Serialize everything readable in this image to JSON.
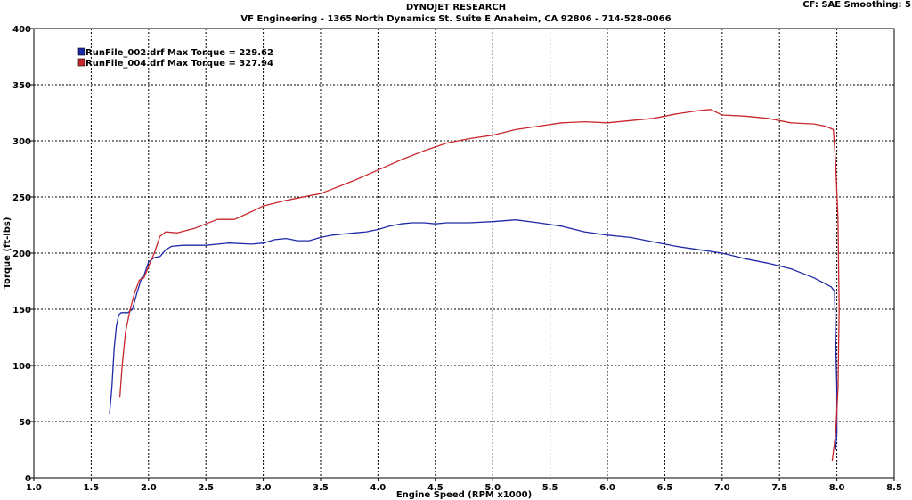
{
  "header": {
    "title": "DYNOJET RESEARCH",
    "subtitle": "VF Engineering - 1365 North Dynamics St. Suite E Anaheim, CA 92806 - 714-528-0066",
    "corner": "CF: SAE  Smoothing: 5"
  },
  "chart_data": {
    "type": "line",
    "xlabel": "Engine Speed (RPM x1000)",
    "ylabel": "Torque (ft-lbs)",
    "xlim": [
      1.0,
      8.5
    ],
    "ylim": [
      0,
      400
    ],
    "xticks": [
      "1.0",
      "1.5",
      "2.0",
      "2.5",
      "3.0",
      "3.5",
      "4.0",
      "4.5",
      "5.0",
      "5.5",
      "6.0",
      "6.5",
      "7.0",
      "7.5",
      "8.0",
      "8.5"
    ],
    "yticks": [
      "0",
      "50",
      "100",
      "150",
      "200",
      "250",
      "300",
      "350",
      "400"
    ],
    "grid": true,
    "legend_position": "top-left",
    "series": [
      {
        "name": "RunFile_002.drf Max Torque = 229.62",
        "color": "#1f2aa8",
        "points": [
          [
            1.66,
            57
          ],
          [
            1.68,
            80
          ],
          [
            1.7,
            115
          ],
          [
            1.72,
            135
          ],
          [
            1.74,
            145
          ],
          [
            1.76,
            147
          ],
          [
            1.82,
            147
          ],
          [
            1.86,
            150
          ],
          [
            1.9,
            165
          ],
          [
            1.94,
            178
          ],
          [
            1.96,
            180
          ],
          [
            2.0,
            192
          ],
          [
            2.05,
            196
          ],
          [
            2.1,
            197
          ],
          [
            2.15,
            203
          ],
          [
            2.2,
            206
          ],
          [
            2.3,
            207
          ],
          [
            2.5,
            207
          ],
          [
            2.7,
            209
          ],
          [
            2.9,
            208
          ],
          [
            3.0,
            209
          ],
          [
            3.1,
            212
          ],
          [
            3.2,
            213
          ],
          [
            3.3,
            211
          ],
          [
            3.4,
            211
          ],
          [
            3.5,
            214
          ],
          [
            3.6,
            216
          ],
          [
            3.8,
            218
          ],
          [
            3.9,
            219
          ],
          [
            4.0,
            221
          ],
          [
            4.1,
            224
          ],
          [
            4.2,
            226
          ],
          [
            4.3,
            227
          ],
          [
            4.4,
            227
          ],
          [
            4.5,
            226
          ],
          [
            4.6,
            227
          ],
          [
            4.8,
            227
          ],
          [
            5.0,
            228
          ],
          [
            5.2,
            229.6
          ],
          [
            5.4,
            227
          ],
          [
            5.6,
            224
          ],
          [
            5.8,
            219
          ],
          [
            6.0,
            216
          ],
          [
            6.2,
            214
          ],
          [
            6.4,
            210
          ],
          [
            6.6,
            206
          ],
          [
            6.8,
            203
          ],
          [
            7.0,
            200
          ],
          [
            7.2,
            195
          ],
          [
            7.4,
            191
          ],
          [
            7.6,
            186
          ],
          [
            7.8,
            178
          ],
          [
            7.95,
            170
          ],
          [
            7.98,
            166
          ],
          [
            7.99,
            120
          ],
          [
            8.0,
            80
          ],
          [
            8.0,
            40
          ],
          [
            7.99,
            25
          ]
        ]
      },
      {
        "name": "RunFile_004.drf Max Torque = 327.94",
        "color": "#c8282d",
        "points": [
          [
            1.75,
            72
          ],
          [
            1.77,
            100
          ],
          [
            1.8,
            130
          ],
          [
            1.84,
            150
          ],
          [
            1.88,
            165
          ],
          [
            1.92,
            176
          ],
          [
            1.96,
            178
          ],
          [
            2.0,
            188
          ],
          [
            2.05,
            200
          ],
          [
            2.1,
            215
          ],
          [
            2.15,
            219
          ],
          [
            2.25,
            218
          ],
          [
            2.4,
            222
          ],
          [
            2.5,
            226
          ],
          [
            2.6,
            230
          ],
          [
            2.75,
            230
          ],
          [
            2.9,
            237
          ],
          [
            3.0,
            242
          ],
          [
            3.2,
            247
          ],
          [
            3.4,
            251
          ],
          [
            3.5,
            253
          ],
          [
            3.6,
            257
          ],
          [
            3.8,
            265
          ],
          [
            4.0,
            274
          ],
          [
            4.2,
            283
          ],
          [
            4.4,
            291
          ],
          [
            4.6,
            298
          ],
          [
            4.8,
            302
          ],
          [
            5.0,
            305
          ],
          [
            5.2,
            310
          ],
          [
            5.4,
            313
          ],
          [
            5.6,
            316
          ],
          [
            5.8,
            317
          ],
          [
            6.0,
            316
          ],
          [
            6.2,
            318
          ],
          [
            6.4,
            320
          ],
          [
            6.6,
            324
          ],
          [
            6.8,
            327
          ],
          [
            6.9,
            327.9
          ],
          [
            7.0,
            323
          ],
          [
            7.2,
            322
          ],
          [
            7.4,
            320
          ],
          [
            7.6,
            316
          ],
          [
            7.8,
            315
          ],
          [
            7.9,
            313
          ],
          [
            7.97,
            310
          ],
          [
            7.99,
            280
          ],
          [
            8.01,
            230
          ],
          [
            8.02,
            150
          ],
          [
            8.01,
            80
          ],
          [
            7.99,
            40
          ],
          [
            7.96,
            15
          ]
        ]
      }
    ]
  }
}
